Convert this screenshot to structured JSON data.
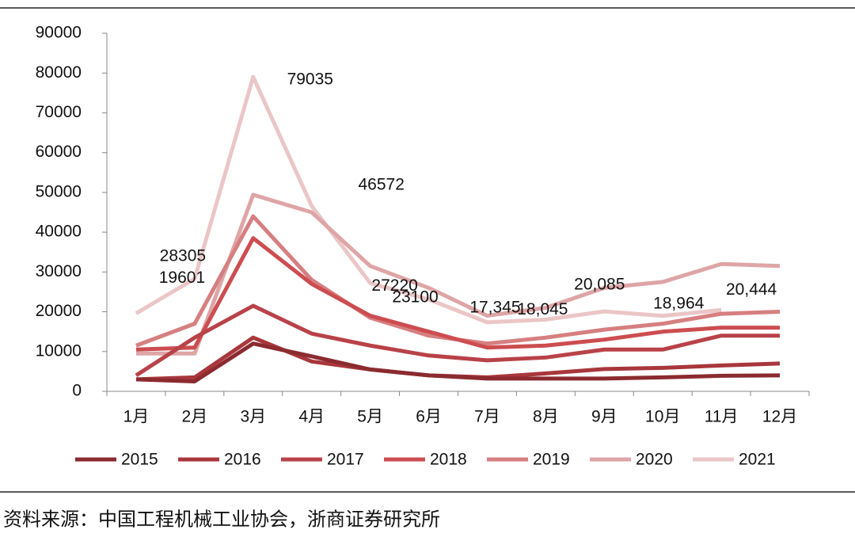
{
  "chart_data": {
    "type": "line",
    "categories": [
      "1月",
      "2月",
      "3月",
      "4月",
      "5月",
      "6月",
      "7月",
      "8月",
      "9月",
      "10月",
      "11月",
      "12月"
    ],
    "ylim": [
      0,
      90000
    ],
    "yticks": [
      0,
      10000,
      20000,
      30000,
      40000,
      50000,
      60000,
      70000,
      80000,
      90000
    ],
    "legend": "bottom",
    "source": "资料来源：中国工程机械工业协会，浙商证券研究所",
    "series": [
      {
        "name": "2015",
        "color": "#8b2b2f",
        "values": [
          3000,
          2500,
          12000,
          8800,
          5500,
          4000,
          3200,
          3200,
          3200,
          3500,
          3900,
          4000
        ]
      },
      {
        "name": "2016",
        "color": "#a8373c",
        "values": [
          3000,
          3500,
          13500,
          7500,
          5500,
          4000,
          3500,
          4500,
          5600,
          5900,
          6500,
          7000
        ]
      },
      {
        "name": "2017",
        "color": "#b84248",
        "values": [
          4000,
          13500,
          21500,
          14500,
          11500,
          9000,
          7800,
          8500,
          10500,
          10500,
          14000,
          14000
        ]
      },
      {
        "name": "2018",
        "color": "#cc4d50",
        "values": [
          10500,
          11000,
          38500,
          27000,
          19000,
          15000,
          11000,
          11500,
          13000,
          15000,
          16000,
          16000
        ]
      },
      {
        "name": "2019",
        "color": "#d67f80",
        "values": [
          11500,
          17000,
          44000,
          28000,
          18500,
          14000,
          12000,
          13500,
          15500,
          17000,
          19500,
          20000
        ]
      },
      {
        "name": "2020",
        "color": "#dea5a6",
        "values": [
          9500,
          9500,
          49400,
          45000,
          31500,
          26000,
          19000,
          21000,
          26000,
          27500,
          32000,
          31500
        ]
      },
      {
        "name": "2021",
        "color": "#ebc6c7",
        "values": [
          19601,
          28305,
          79035,
          46572,
          27220,
          23100,
          17345,
          18045,
          20085,
          18964,
          20444,
          null
        ],
        "value_labels": [
          "19601",
          "28305",
          "79035",
          "46572",
          "27220",
          "23100",
          "17,345",
          "18,045",
          "20,085",
          "18,964",
          "20,444",
          null
        ]
      }
    ]
  }
}
